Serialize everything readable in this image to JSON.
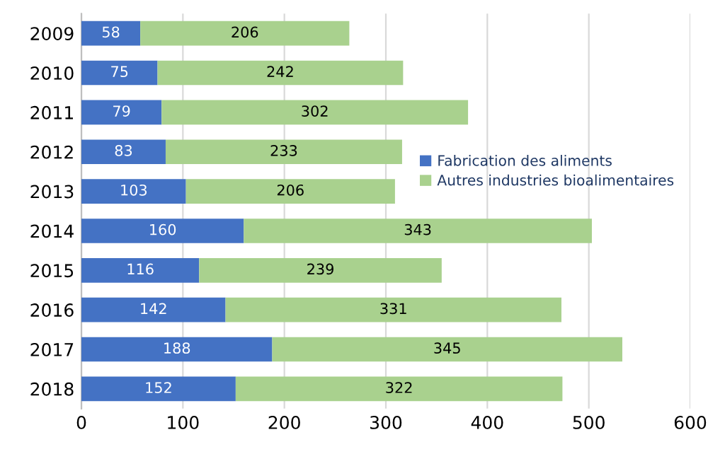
{
  "chart_data": {
    "type": "bar",
    "orientation": "horizontal",
    "stacked": true,
    "categories": [
      "2009",
      "2010",
      "2011",
      "2012",
      "2013",
      "2014",
      "2015",
      "2016",
      "2017",
      "2018"
    ],
    "series": [
      {
        "name": "Fabrication des aliments",
        "color": "#4472c4",
        "values": [
          58,
          75,
          79,
          83,
          103,
          160,
          116,
          142,
          188,
          152
        ]
      },
      {
        "name": "Autres industries bioalimentaires",
        "color": "#a9d18e",
        "values": [
          206,
          242,
          302,
          233,
          206,
          343,
          239,
          331,
          345,
          322
        ]
      }
    ],
    "xlim": [
      0,
      600
    ],
    "xticks": [
      0,
      100,
      200,
      300,
      400,
      500,
      600
    ],
    "grid": "x",
    "legend": "right",
    "data_labels": true
  }
}
